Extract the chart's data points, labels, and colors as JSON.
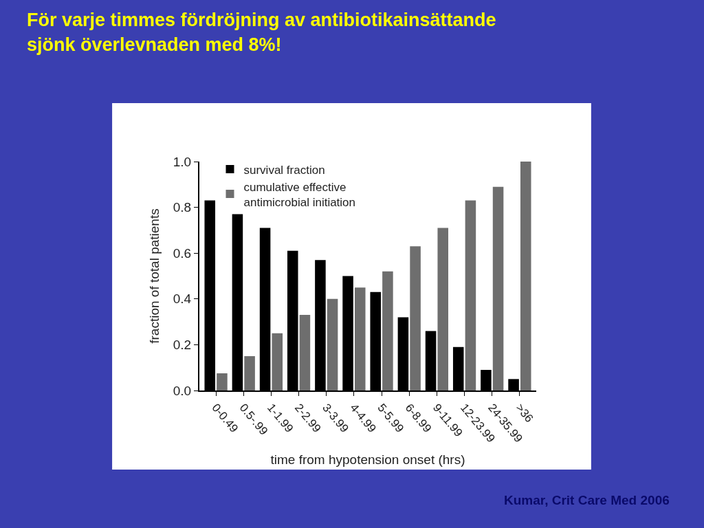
{
  "chart_data": {
    "type": "bar",
    "title": "För varje timmes fördröjning av antibiotikainsättande\nsjönk överlevnaden med 8%!",
    "xlabel": "time from hypotension onset (hrs)",
    "ylabel": "fraction of total patients",
    "categories": [
      "0-0.49",
      "0.5-.99",
      "1-1.99",
      "2-2.99",
      "3-3.99",
      "4-4.99",
      "5-5.99",
      "6-8.99",
      "9-11.99",
      "12-23.99",
      "24-35.99",
      ">36"
    ],
    "series": [
      {
        "name": "survival fraction",
        "color": "#000000",
        "values": [
          0.83,
          0.77,
          0.71,
          0.61,
          0.57,
          0.5,
          0.43,
          0.32,
          0.26,
          0.19,
          0.09,
          0.05
        ]
      },
      {
        "name": "cumulative effective\nantimicrobial initiation",
        "color": "#6e6e6e",
        "values": [
          0.075,
          0.15,
          0.25,
          0.33,
          0.4,
          0.45,
          0.52,
          0.63,
          0.71,
          0.83,
          0.89,
          1.0
        ]
      }
    ],
    "ylim": [
      0,
      1.0
    ],
    "yticks": [
      {
        "value": 0,
        "label": "0.0"
      },
      {
        "value": 0.2,
        "label": "0.2"
      },
      {
        "value": 0.4,
        "label": "0.4"
      },
      {
        "value": 0.6,
        "label": "0.6"
      },
      {
        "value": 0.8,
        "label": "0.8"
      },
      {
        "value": 1.0,
        "label": "1.0"
      }
    ],
    "legend": "top left",
    "annotations": [
      "Kumar, Crit Care Med 2006"
    ]
  }
}
